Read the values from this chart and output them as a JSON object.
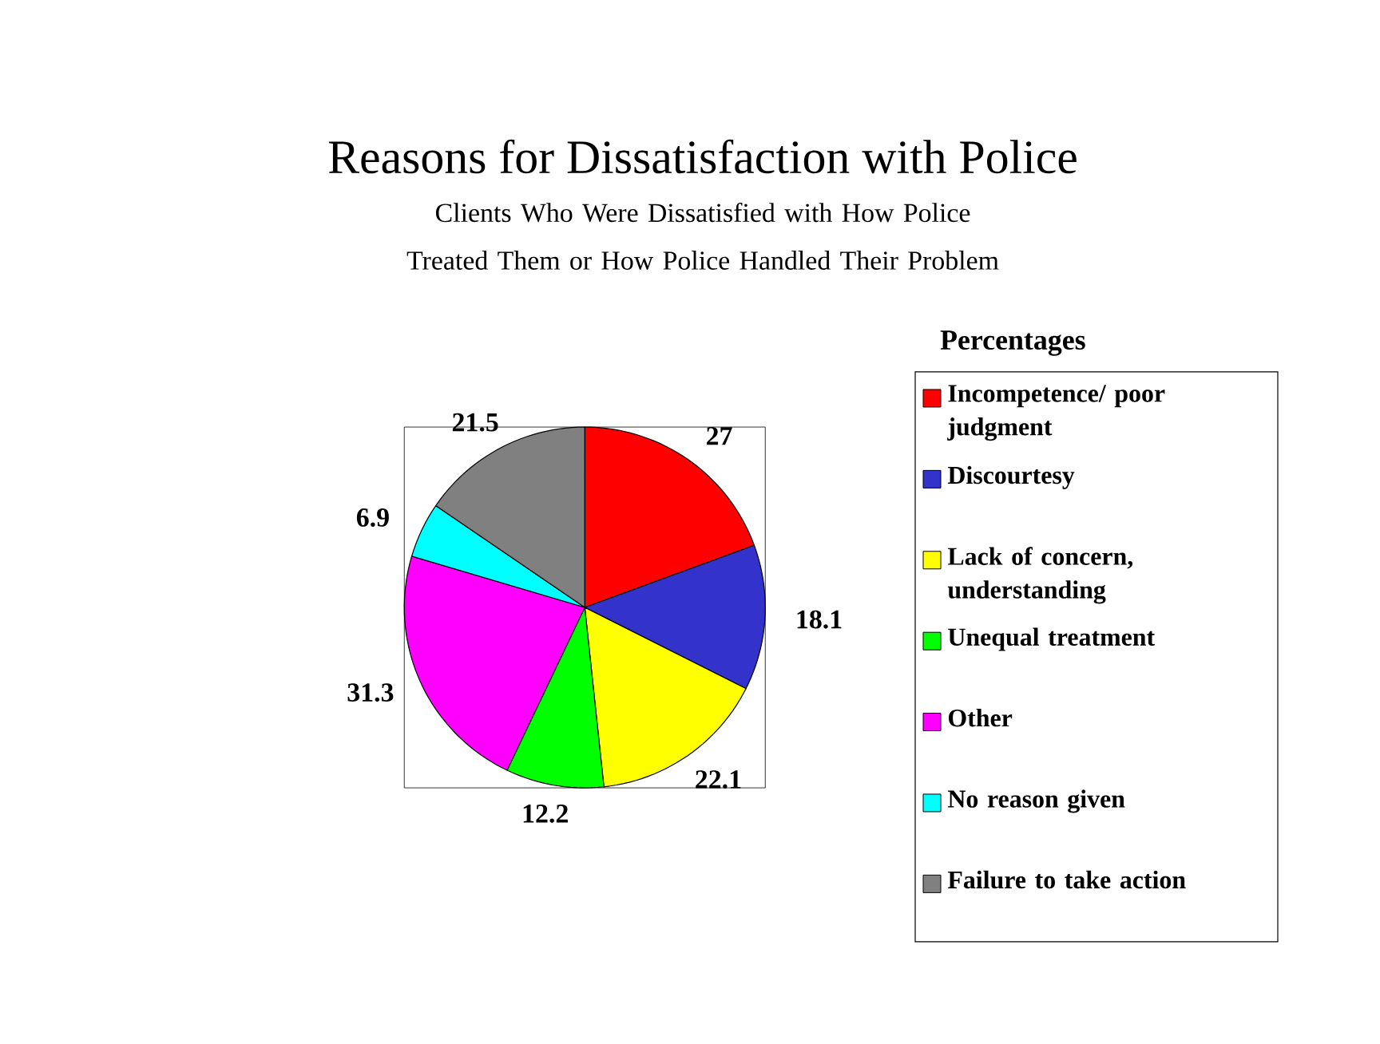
{
  "chart_data": {
    "type": "pie",
    "title": "Reasons for Dissatisfaction with Police",
    "subtitle": "Clients Who Were Dissatisfied with How Police Treated Them or How Police Handled Their Problem",
    "legend_title": "Percentages",
    "categories": [
      "Incompetence/ poor judgment",
      "Discourtesy",
      "Lack of concern, understanding",
      "Unequal treatment",
      "Other",
      "No reason given",
      "Failure to take action"
    ],
    "values": [
      27,
      18.1,
      22.1,
      12.2,
      31.3,
      6.9,
      21.5
    ],
    "colors": [
      "#ff0000",
      "#3333cc",
      "#ffff00",
      "#00ff00",
      "#ff00ff",
      "#00ffff",
      "#808080"
    ],
    "data_labels": true,
    "legend": "right"
  }
}
